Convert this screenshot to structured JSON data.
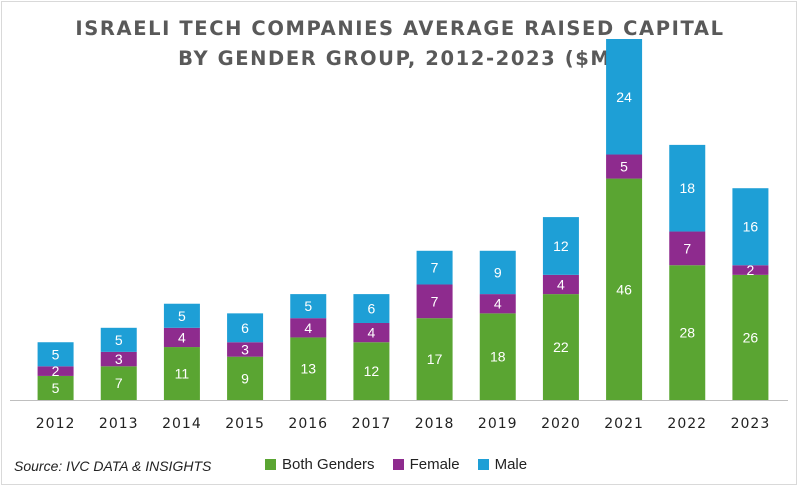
{
  "chart_data": {
    "type": "bar",
    "stacked": true,
    "title_lines": [
      "ISRAELI TECH COMPANIES AVERAGE RAISED CAPITAL",
      "BY GENDER GROUP, 2012-2023 ($M)"
    ],
    "categories": [
      "2012",
      "2013",
      "2014",
      "2015",
      "2016",
      "2017",
      "2018",
      "2019",
      "2020",
      "2021",
      "2022",
      "2023"
    ],
    "series": [
      {
        "name": "Both Genders",
        "color": "#5aa532",
        "values": [
          5,
          7,
          11,
          9,
          13,
          12,
          17,
          18,
          22,
          46,
          28,
          26
        ]
      },
      {
        "name": "Female",
        "color": "#8e2b8e",
        "values": [
          2,
          3,
          4,
          3,
          4,
          4,
          7,
          4,
          4,
          5,
          7,
          2
        ]
      },
      {
        "name": "Male",
        "color": "#1e9fd6",
        "values": [
          5,
          5,
          5,
          6,
          5,
          6,
          7,
          9,
          12,
          24,
          18,
          16
        ]
      }
    ],
    "ylim": [
      0,
      75
    ],
    "xlabel": "",
    "ylabel": "",
    "legend": "bottom"
  },
  "source": "Source: IVC DATA & INSIGHTS"
}
